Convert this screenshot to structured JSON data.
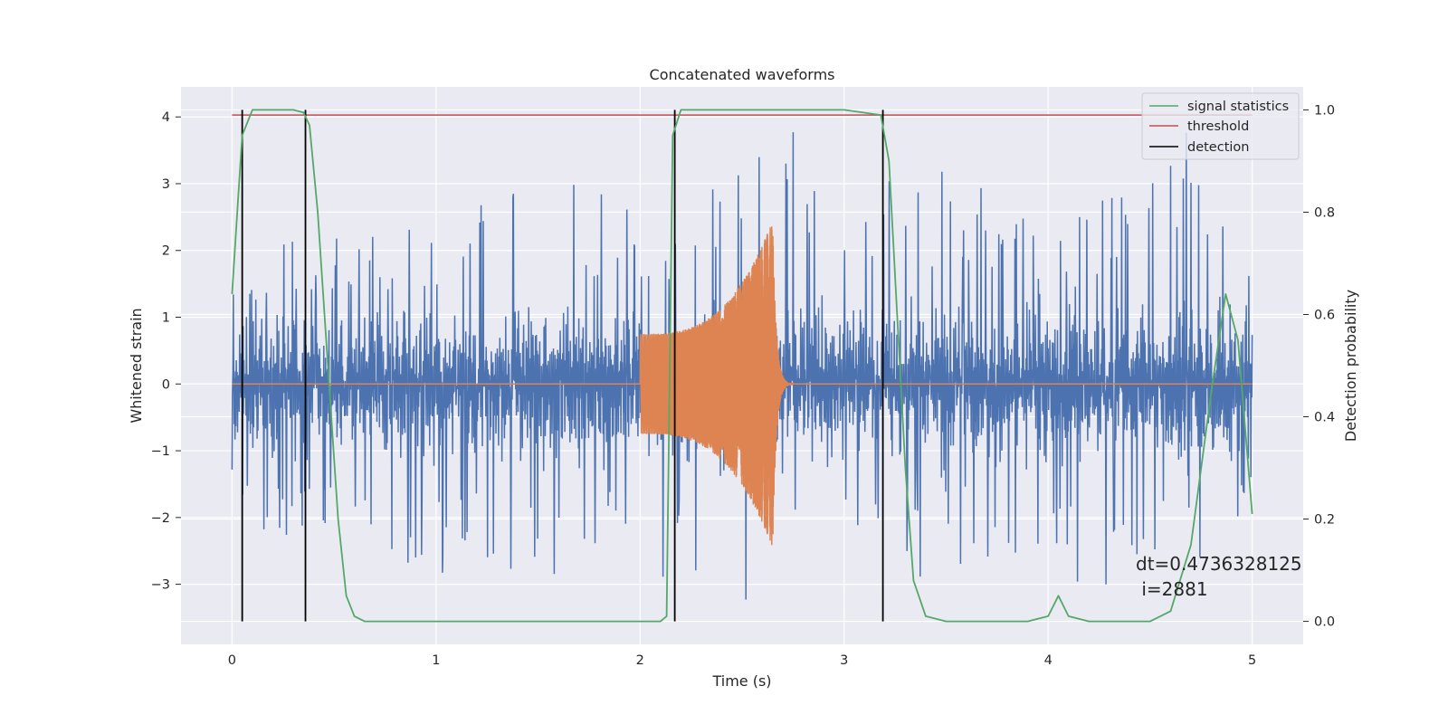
{
  "chart_data": {
    "type": "line",
    "title": "Concatenated waveforms",
    "xlabel": "Time (s)",
    "ylabel_left": "Whitened strain",
    "ylabel_right": "Detection probability",
    "xlim": [
      -0.25,
      5.25
    ],
    "ylim_left": [
      -3.9,
      4.45
    ],
    "ylim_right": [
      -0.045,
      1.045
    ],
    "x_ticks": [
      0,
      1,
      2,
      3,
      4,
      5
    ],
    "x_tick_labels": [
      "0",
      "1",
      "2",
      "3",
      "4",
      "5"
    ],
    "y_left_ticks": [
      4,
      3,
      2,
      1,
      0,
      -1,
      -2,
      -3
    ],
    "y_left_tick_labels": [
      "4",
      "3",
      "2",
      "1",
      "0",
      "−1",
      "−2",
      "−3"
    ],
    "y_right_ticks": [
      1.0,
      0.8,
      0.6,
      0.4,
      0.2,
      0.0
    ],
    "y_right_tick_labels": [
      "1.0",
      "0.8",
      "0.6",
      "0.4",
      "0.2",
      "0.0"
    ],
    "grid": true,
    "legend_position": "top-right",
    "legend": [
      {
        "label": "signal statistics",
        "color": "#55a868"
      },
      {
        "label": "threshold",
        "color": "#c44e52"
      },
      {
        "label": "detection",
        "color": "#000000"
      }
    ],
    "colors": {
      "background": "#eaeaf2",
      "grid": "#ffffff",
      "strain": "#4c72b0",
      "template": "#dd8452"
    },
    "whitened_strain": {
      "axis": "left",
      "x_range": [
        0,
        5
      ],
      "typical_range": [
        -1.0,
        1.0
      ],
      "peak_envelope_x": [
        0,
        0.5,
        1,
        1.5,
        2,
        2.5,
        2.65,
        3,
        3.5,
        4,
        4.5,
        4.65,
        5
      ],
      "peak_envelope_max": [
        2.3,
        2.2,
        2.5,
        3.4,
        2.5,
        3.3,
        4.2,
        3.0,
        3.2,
        2.6,
        3.1,
        4.0,
        1.8
      ],
      "peak_envelope_min": [
        -2.3,
        -2.7,
        -3.0,
        -2.9,
        -2.9,
        -3.4,
        -2.6,
        -2.9,
        -2.9,
        -3.2,
        -2.9,
        -3.0,
        -2.0
      ]
    },
    "template_waveform": {
      "axis": "left",
      "x_start": 2.0,
      "x_merger": 2.65,
      "x_end": 2.75,
      "amplitude_start": 0.75,
      "amplitude_peak": 2.45,
      "amplitude_min_peak": -2.65
    },
    "signal_statistics": {
      "axis": "right",
      "x": [
        0,
        0.05,
        0.1,
        0.2,
        0.3,
        0.35,
        0.38,
        0.42,
        0.47,
        0.52,
        0.56,
        0.6,
        0.65,
        1.0,
        2.0,
        2.1,
        2.13,
        2.16,
        2.2,
        2.5,
        3.0,
        3.18,
        3.22,
        3.26,
        3.3,
        3.34,
        3.4,
        3.5,
        3.9,
        4.0,
        4.05,
        4.1,
        4.2,
        4.5,
        4.6,
        4.7,
        4.8,
        4.87,
        4.93,
        5.0
      ],
      "y": [
        0.64,
        0.95,
        1.0,
        1.0,
        1.0,
        0.995,
        0.97,
        0.8,
        0.5,
        0.2,
        0.05,
        0.01,
        0.0,
        0.0,
        0.0,
        0.0,
        0.01,
        0.95,
        1.0,
        1.0,
        1.0,
        0.99,
        0.9,
        0.6,
        0.3,
        0.08,
        0.01,
        0.0,
        0.0,
        0.01,
        0.05,
        0.01,
        0.0,
        0.0,
        0.02,
        0.15,
        0.45,
        0.64,
        0.55,
        0.21
      ]
    },
    "threshold": {
      "axis": "right",
      "value": 0.99,
      "x_range": [
        0,
        5
      ]
    },
    "detections": [
      0.05,
      0.36,
      2.17,
      3.19
    ],
    "annotation": {
      "line1": "dt=0.4736328125",
      "line2": " i=2881"
    }
  }
}
